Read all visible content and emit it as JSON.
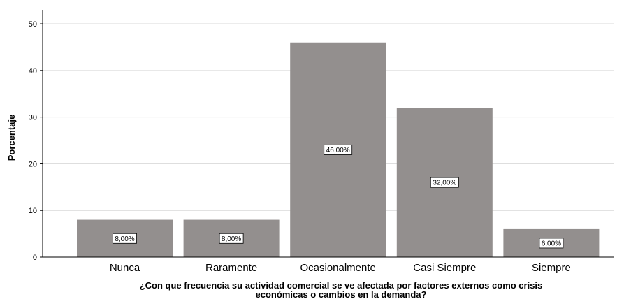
{
  "chart_data": {
    "type": "bar",
    "categories": [
      "Nunca",
      "Raramente",
      "Ocasionalmente",
      "Casi Siempre",
      "Siempre"
    ],
    "values": [
      8,
      8,
      46,
      32,
      6
    ],
    "data_labels": [
      "8,00%",
      "8,00%",
      "46,00%",
      "32,00%",
      "6,00%"
    ],
    "yticks": [
      0,
      10,
      20,
      30,
      40,
      50
    ],
    "ylim": [
      0,
      53
    ],
    "ylabel": "Porcentaje",
    "xlabel_lines": [
      "¿Con que frecuencia su actividad comercial se ve afectada por factores externos como crisis",
      "económicas o cambios en la demanda?"
    ],
    "grid": true,
    "legend": "none",
    "colors": {
      "bar": "#938f8e",
      "grid": "#d9d9d9",
      "axis": "#000000"
    }
  }
}
